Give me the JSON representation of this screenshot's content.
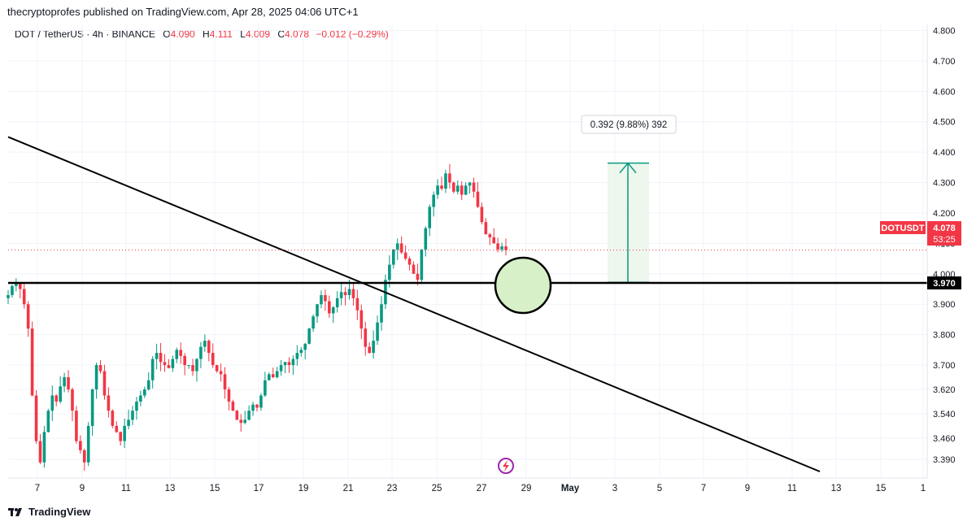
{
  "header": {
    "published": "thecryptoprofes published on TradingView.com, Apr 28, 2025 04:06 UTC+1"
  },
  "legend": {
    "symbol": "DOT / TetherUS · 4h · BINANCE",
    "o_label": "O",
    "o_value": "4.090",
    "h_label": "H",
    "h_value": "4.111",
    "l_label": "L",
    "l_value": "4.009",
    "c_label": "C",
    "c_value": "4.078",
    "change": "−0.012 (−0.29%)"
  },
  "measure": {
    "label": "0.392 (9.88%) 392"
  },
  "price_tag": {
    "symbol": "DOTUSDT",
    "price": "4.078",
    "countdown": "53:25"
  },
  "level_tag": {
    "price": "3.970"
  },
  "footer": {
    "brand": "TradingView"
  },
  "colors": {
    "up": "#089981",
    "down": "#f23645",
    "measure_fill": "#e8f5e9",
    "measure_line": "#089981",
    "circle_fill": "#d7f0c8"
  },
  "chart_data": {
    "type": "candlestick",
    "ylim": [
      3.35,
      4.82
    ],
    "y_ticks": [
      "4.800",
      "4.700",
      "4.600",
      "4.500",
      "4.400",
      "4.300",
      "4.200",
      "4.100",
      "4.000",
      "3.900",
      "3.800",
      "3.700",
      "3.620",
      "3.540",
      "3.460",
      "3.390"
    ],
    "x_ticks": [
      "7",
      "9",
      "11",
      "13",
      "15",
      "17",
      "19",
      "21",
      "23",
      "25",
      "27",
      "29",
      "May",
      "3",
      "5",
      "7",
      "9",
      "11",
      "13",
      "15",
      "1"
    ],
    "price_path": [
      3.93,
      3.96,
      3.97,
      3.95,
      3.9,
      3.82,
      3.6,
      3.45,
      3.38,
      3.48,
      3.55,
      3.6,
      3.58,
      3.63,
      3.66,
      3.62,
      3.55,
      3.45,
      3.42,
      3.38,
      3.5,
      3.62,
      3.7,
      3.68,
      3.6,
      3.55,
      3.5,
      3.48,
      3.45,
      3.5,
      3.52,
      3.55,
      3.58,
      3.6,
      3.62,
      3.65,
      3.72,
      3.74,
      3.71,
      3.7,
      3.69,
      3.72,
      3.75,
      3.73,
      3.7,
      3.7,
      3.68,
      3.72,
      3.76,
      3.78,
      3.74,
      3.7,
      3.68,
      3.67,
      3.62,
      3.58,
      3.55,
      3.52,
      3.51,
      3.52,
      3.55,
      3.57,
      3.56,
      3.6,
      3.65,
      3.67,
      3.66,
      3.68,
      3.7,
      3.71,
      3.7,
      3.72,
      3.74,
      3.75,
      3.77,
      3.82,
      3.86,
      3.9,
      3.93,
      3.91,
      3.87,
      3.89,
      3.92,
      3.94,
      3.93,
      3.95,
      3.92,
      3.88,
      3.82,
      3.76,
      3.74,
      3.78,
      3.84,
      3.9,
      3.98,
      4.03,
      4.08,
      4.1,
      4.07,
      4.05,
      4.03,
      4.0,
      3.98,
      4.08,
      4.15,
      4.22,
      4.26,
      4.29,
      4.28,
      4.33,
      4.3,
      4.27,
      4.29,
      4.26,
      4.29,
      4.3,
      4.27,
      4.22,
      4.17,
      4.13,
      4.12,
      4.1,
      4.08,
      4.09,
      4.078
    ],
    "candle_x_range": [
      "Apr 6",
      "Apr 28"
    ],
    "trendline": {
      "from": [
        "Apr 5",
        4.45
      ],
      "to": [
        "May 12",
        3.35
      ]
    },
    "horizontal_level": 3.97,
    "measure_range": [
      3.972,
      4.364
    ],
    "last_price": 4.078
  }
}
